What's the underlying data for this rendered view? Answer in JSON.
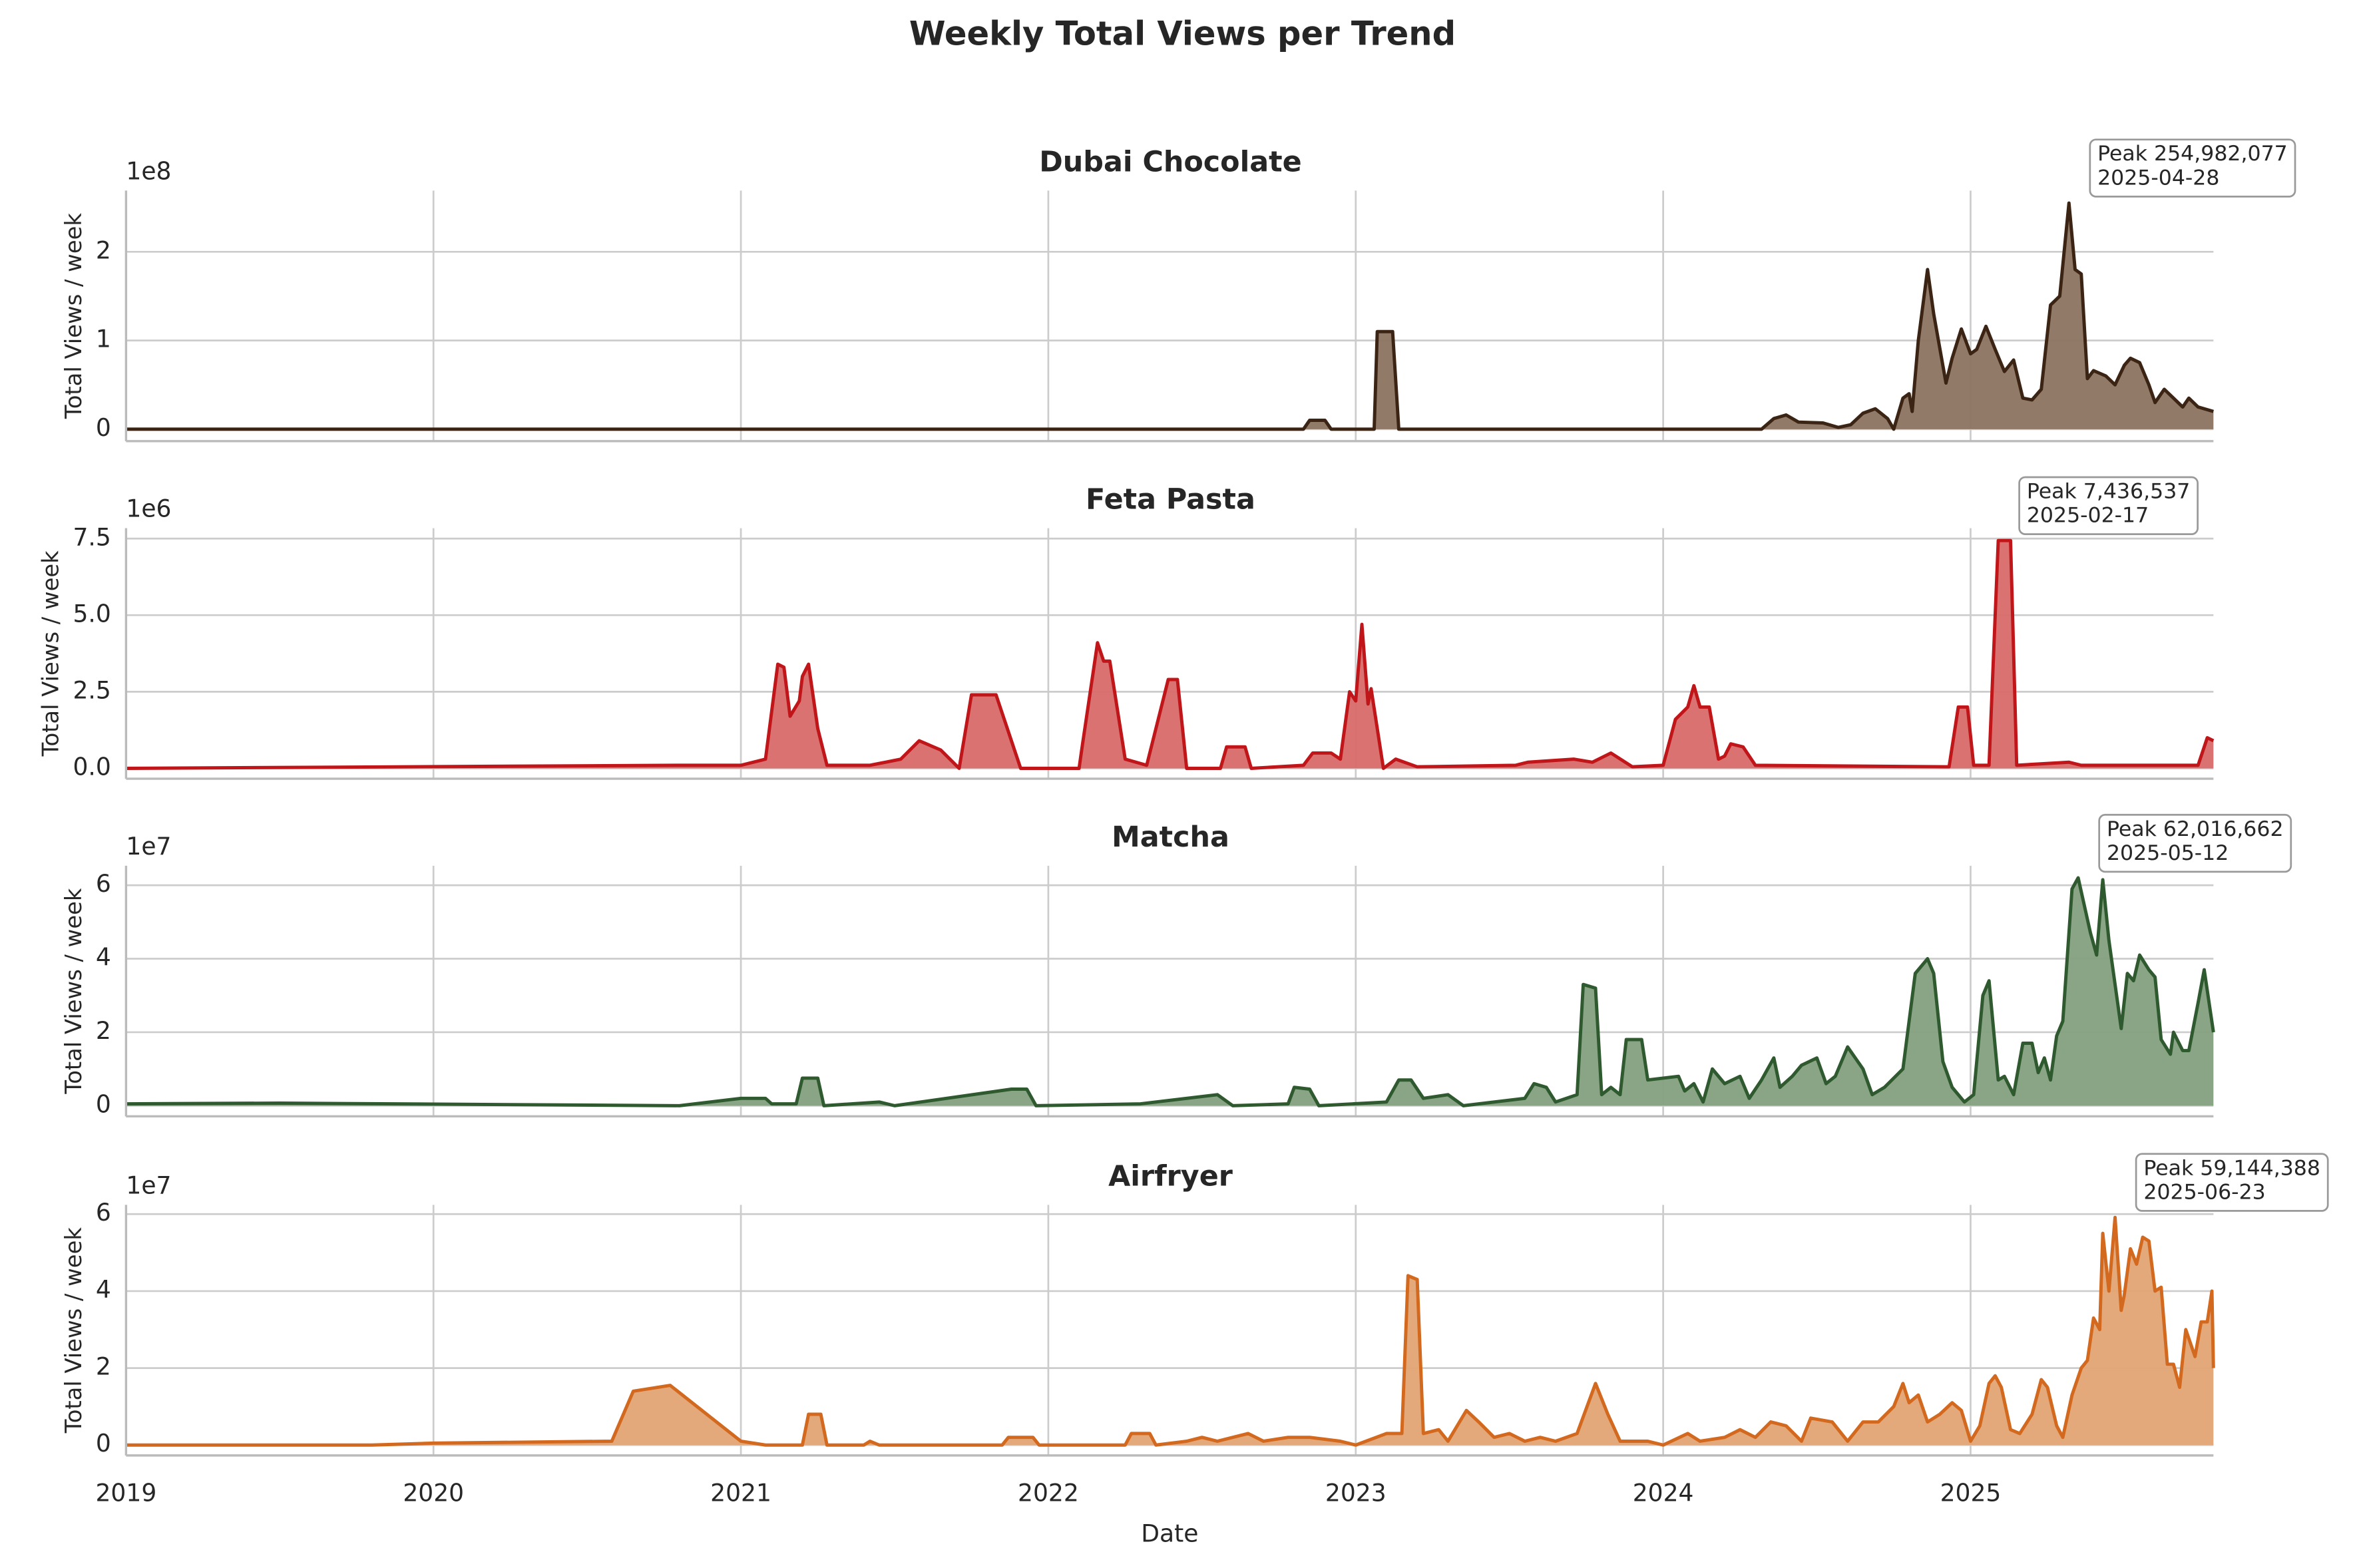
{
  "title": "Weekly Total Views per Trend",
  "chart_data": [
    {
      "type": "area",
      "title": "Dubai Chocolate",
      "ylabel": "Total Views / week",
      "y_offset_label": "1e8",
      "color": "#3b2414",
      "fill_color": "#8b7360",
      "xlim": [
        2019,
        2025.79
      ],
      "xticks": [
        2019,
        2020,
        2021,
        2022,
        2023,
        2024,
        2025
      ],
      "ylim": [
        -13500000,
        269000000
      ],
      "yticks": [
        0,
        {
          "value": 100000000,
          "label": "1"
        },
        {
          "value": 200000000,
          "label": "2"
        }
      ],
      "grid": true,
      "annotation": [
        "Peak 254,982,077",
        "2025-04-28"
      ],
      "x": [
        2019,
        2022.83,
        2022.85,
        2022.9,
        2022.92,
        2023.06,
        2023.07,
        2023.12,
        2023.14,
        2024.32,
        2024.36,
        2024.4,
        2024.44,
        2024.52,
        2024.57,
        2024.61,
        2024.65,
        2024.69,
        2024.73,
        2024.75,
        2024.78,
        2024.8,
        2024.81,
        2024.83,
        2024.86,
        2024.88,
        2024.92,
        2024.94,
        2024.97,
        2025.0,
        2025.02,
        2025.05,
        2025.08,
        2025.11,
        2025.14,
        2025.17,
        2025.2,
        2025.23,
        2025.26,
        2025.29,
        2025.32,
        2025.34,
        2025.36,
        2025.38,
        2025.4,
        2025.44,
        2025.47,
        2025.5,
        2025.52,
        2025.55,
        2025.58,
        2025.6,
        2025.63,
        2025.66,
        2025.69,
        2025.71,
        2025.74,
        2025.79
      ],
      "values": [
        0,
        0,
        10000000.0,
        10000000.0,
        0,
        0,
        110000000.0,
        110000000.0,
        0,
        0,
        12000000.0,
        16000000.0,
        8000000.0,
        7000000.0,
        2000000.0,
        5000000.0,
        18000000.0,
        23000000.0,
        12000000.0,
        0,
        35000000.0,
        40000000.0,
        20000000.0,
        100000000.0,
        180000000.0,
        130000000.0,
        52000000.0,
        80000000.0,
        113000000.0,
        85000000.0,
        90000000.0,
        116000000.0,
        90000000.0,
        65000000.0,
        78000000.0,
        35000000.0,
        33000000.0,
        45000000.0,
        140000000.0,
        150000000.0,
        254982077,
        180000000.0,
        175000000.0,
        57000000.0,
        66000000.0,
        60000000.0,
        50000000.0,
        72000000.0,
        80000000.0,
        75000000.0,
        50000000.0,
        30000000.0,
        45000000.0,
        35000000.0,
        25000000.0,
        35000000.0,
        25000000.0,
        20000000.0
      ]
    },
    {
      "type": "area",
      "title": "Feta Pasta",
      "ylabel": "Total Views / week",
      "y_offset_label": "1e6",
      "color": "#c0161a",
      "fill_color": "#d86a6a",
      "xlim": [
        2019,
        2025.79
      ],
      "xticks": [
        2019,
        2020,
        2021,
        2022,
        2023,
        2024,
        2025
      ],
      "ylim": [
        -340000,
        7840000
      ],
      "yticks": [
        {
          "value": 0,
          "label": "0.0"
        },
        {
          "value": 2500000,
          "label": "2.5"
        },
        {
          "value": 5000000,
          "label": "5.0"
        },
        {
          "value": 7500000,
          "label": "7.5"
        }
      ],
      "grid": true,
      "annotation": [
        "Peak 7,436,537",
        "2025-02-17"
      ],
      "x": [
        2019,
        2020.79,
        2021.0,
        2021.08,
        2021.12,
        2021.14,
        2021.16,
        2021.19,
        2021.2,
        2021.22,
        2021.25,
        2021.28,
        2021.42,
        2021.47,
        2021.52,
        2021.58,
        2021.65,
        2021.71,
        2021.75,
        2021.83,
        2021.91,
        2022.1,
        2022.11,
        2022.16,
        2022.18,
        2022.2,
        2022.25,
        2022.32,
        2022.39,
        2022.42,
        2022.45,
        2022.56,
        2022.58,
        2022.64,
        2022.66,
        2022.83,
        2022.86,
        2022.92,
        2022.95,
        2022.98,
        2023.0,
        2023.02,
        2023.04,
        2023.05,
        2023.09,
        2023.13,
        2023.2,
        2023.52,
        2023.56,
        2023.71,
        2023.77,
        2023.83,
        2023.9,
        2024.0,
        2024.04,
        2024.08,
        2024.1,
        2024.12,
        2024.15,
        2024.18,
        2024.2,
        2024.22,
        2024.26,
        2024.3,
        2024.93,
        2024.96,
        2024.99,
        2025.01,
        2025.06,
        2025.09,
        2025.13,
        2025.15,
        2025.32,
        2025.36,
        2025.74,
        2025.77,
        2025.79
      ],
      "values": [
        0,
        100000.0,
        100000.0,
        300000.0,
        3400000.0,
        3300000.0,
        1700000.0,
        2200000.0,
        3000000.0,
        3400000.0,
        1300000.0,
        100000.0,
        100000.0,
        200000.0,
        300000.0,
        900000.0,
        600000.0,
        0,
        2400000.0,
        2400000.0,
        0,
        0,
        700000.0,
        4100000.0,
        3500000.0,
        3500000.0,
        300000.0,
        100000.0,
        2900000.0,
        2900000.0,
        0,
        0,
        700000.0,
        700000.0,
        0,
        100000.0,
        500000.0,
        500000.0,
        300000.0,
        2500000.0,
        2200000.0,
        4700000.0,
        2100000.0,
        2600000.0,
        0,
        300000.0,
        50000.0,
        100000.0,
        200000.0,
        300000.0,
        200000.0,
        500000.0,
        50000.0,
        100000.0,
        1600000.0,
        2000000.0,
        2700000.0,
        2000000.0,
        2000000.0,
        300000.0,
        400000.0,
        800000.0,
        700000.0,
        100000.0,
        50000.0,
        2000000.0,
        2000000.0,
        100000.0,
        100000.0,
        7436537,
        7436537,
        100000.0,
        200000.0,
        100000.0,
        100000.0,
        1000000.0,
        900000.0
      ]
    },
    {
      "type": "area",
      "title": "Matcha",
      "ylabel": "Total Views / week",
      "y_offset_label": "1e7",
      "color": "#2f5a2f",
      "fill_color": "#84a07e",
      "xlim": [
        2019,
        2025.79
      ],
      "xticks": [
        2019,
        2020,
        2021,
        2022,
        2023,
        2024,
        2025
      ],
      "ylim": [
        -2900000,
        65300000
      ],
      "yticks": [
        0,
        {
          "value": 20000000,
          "label": "2"
        },
        {
          "value": 40000000,
          "label": "4"
        },
        {
          "value": 60000000,
          "label": "6"
        }
      ],
      "grid": true,
      "annotation": [
        "Peak 62,016,662",
        "2025-05-12"
      ],
      "x": [
        2019,
        2019.5,
        2020.8,
        2021.0,
        2021.08,
        2021.1,
        2021.18,
        2021.2,
        2021.25,
        2021.27,
        2021.45,
        2021.5,
        2021.88,
        2021.93,
        2021.96,
        2022.3,
        2022.55,
        2022.6,
        2022.78,
        2022.8,
        2022.85,
        2022.88,
        2023.1,
        2023.14,
        2023.18,
        2023.22,
        2023.3,
        2023.35,
        2023.55,
        2023.58,
        2023.62,
        2023.65,
        2023.72,
        2023.74,
        2023.78,
        2023.8,
        2023.83,
        2023.86,
        2023.88,
        2023.93,
        2023.95,
        2024.05,
        2024.07,
        2024.1,
        2024.13,
        2024.16,
        2024.2,
        2024.25,
        2024.28,
        2024.32,
        2024.36,
        2024.38,
        2024.42,
        2024.45,
        2024.5,
        2024.53,
        2024.56,
        2024.6,
        2024.65,
        2024.68,
        2024.72,
        2024.78,
        2024.82,
        2024.86,
        2024.88,
        2024.91,
        2024.94,
        2024.98,
        2025.01,
        2025.04,
        2025.06,
        2025.09,
        2025.11,
        2025.14,
        2025.17,
        2025.2,
        2025.22,
        2025.24,
        2025.26,
        2025.28,
        2025.3,
        2025.33,
        2025.35,
        2025.39,
        2025.41,
        2025.43,
        2025.45,
        2025.49,
        2025.51,
        2025.53,
        2025.55,
        2025.58,
        2025.6,
        2025.62,
        2025.65,
        2025.66,
        2025.69,
        2025.71,
        2025.74,
        2025.76,
        2025.79
      ],
      "values": [
        500000.0,
        700000.0,
        0,
        2000000.0,
        2000000.0,
        500000.0,
        500000.0,
        7500000.0,
        7500000.0,
        0,
        1000000.0,
        0,
        4500000.0,
        4500000.0,
        0,
        500000.0,
        3000000.0,
        0,
        500000.0,
        5000000.0,
        4500000.0,
        0,
        1000000.0,
        7000000.0,
        7000000.0,
        2000000.0,
        3000000.0,
        0,
        2000000.0,
        6000000.0,
        5000000.0,
        1000000.0,
        3000000.0,
        33000000.0,
        32000000.0,
        3000000.0,
        5000000.0,
        3000000.0,
        18000000.0,
        18000000.0,
        7000000.0,
        8000000.0,
        4000000.0,
        6000000.0,
        1000000.0,
        10000000.0,
        6000000.0,
        8000000.0,
        2000000.0,
        7000000.0,
        13000000.0,
        5000000.0,
        8000000.0,
        11000000.0,
        13000000.0,
        6000000.0,
        8000000.0,
        16000000.0,
        10000000.0,
        3000000.0,
        5000000.0,
        10000000.0,
        36000000.0,
        40000000.0,
        36000000.0,
        12000000.0,
        5000000.0,
        1000000.0,
        3000000.0,
        30000000.0,
        34000000.0,
        7000000.0,
        8000000.0,
        3000000.0,
        17000000.0,
        17000000.0,
        9000000.0,
        13000000.0,
        7000000.0,
        19000000.0,
        23000000.0,
        59000000.0,
        62016662,
        47000000.0,
        41000000.0,
        61500000.0,
        45000000.0,
        21000000.0,
        36000000.0,
        34000000.0,
        41000000.0,
        37000000.0,
        35000000.0,
        18000000.0,
        14000000.0,
        20000000.0,
        15000000.0,
        15000000.0,
        28000000.0,
        37000000.0,
        20000000.0
      ]
    },
    {
      "type": "area",
      "title": "Airfryer",
      "ylabel": "Total Views / week",
      "y_offset_label": "1e7",
      "xlabel": "Date",
      "color": "#d2691e",
      "fill_color": "#e3a474",
      "xlim": [
        2019,
        2025.79
      ],
      "xticks": [
        2019,
        2020,
        2021,
        2022,
        2023,
        2024,
        2025
      ],
      "ylim": [
        -2700000,
        62400000
      ],
      "yticks": [
        0,
        {
          "value": 20000000,
          "label": "2"
        },
        {
          "value": 40000000,
          "label": "4"
        },
        {
          "value": 60000000,
          "label": "6"
        }
      ],
      "grid": true,
      "annotation": [
        "Peak 59,144,388",
        "2025-06-23"
      ],
      "x": [
        2019,
        2019.8,
        2020.0,
        2020.58,
        2020.65,
        2020.77,
        2021.0,
        2021.08,
        2021.2,
        2021.22,
        2021.26,
        2021.28,
        2021.4,
        2021.42,
        2021.45,
        2021.85,
        2021.87,
        2021.95,
        2021.97,
        2022.25,
        2022.27,
        2022.33,
        2022.35,
        2022.45,
        2022.5,
        2022.55,
        2022.65,
        2022.7,
        2022.78,
        2022.85,
        2022.95,
        2023.0,
        2023.1,
        2023.15,
        2023.17,
        2023.2,
        2023.22,
        2023.27,
        2023.3,
        2023.36,
        2023.4,
        2023.45,
        2023.5,
        2023.55,
        2023.6,
        2023.65,
        2023.72,
        2023.78,
        2023.82,
        2023.86,
        2023.95,
        2024.0,
        2024.08,
        2024.12,
        2024.2,
        2024.25,
        2024.3,
        2024.35,
        2024.4,
        2024.45,
        2024.48,
        2024.55,
        2024.6,
        2024.65,
        2024.7,
        2024.75,
        2024.78,
        2024.8,
        2024.83,
        2024.86,
        2024.9,
        2024.94,
        2024.97,
        2025.0,
        2025.03,
        2025.06,
        2025.08,
        2025.1,
        2025.13,
        2025.16,
        2025.2,
        2025.23,
        2025.25,
        2025.28,
        2025.3,
        2025.33,
        2025.36,
        2025.38,
        2025.4,
        2025.42,
        2025.43,
        2025.45,
        2025.47,
        2025.49,
        2025.5,
        2025.52,
        2025.54,
        2025.56,
        2025.58,
        2025.6,
        2025.62,
        2025.64,
        2025.66,
        2025.68,
        2025.7,
        2025.73,
        2025.75,
        2025.77,
        2025.785,
        2025.79
      ],
      "values": [
        0,
        0,
        500000.0,
        1000000.0,
        14000000.0,
        15500000.0,
        1000000.0,
        0,
        0,
        8000000.0,
        8000000.0,
        0,
        0,
        1000000.0,
        0,
        0,
        2000000.0,
        2000000.0,
        0,
        0,
        3000000.0,
        3000000.0,
        0,
        1000000.0,
        2000000.0,
        1000000.0,
        3000000.0,
        1000000.0,
        2000000.0,
        2000000.0,
        1000000.0,
        0,
        3000000.0,
        3000000.0,
        44000000.0,
        43000000.0,
        3000000.0,
        4000000.0,
        1000000.0,
        9000000.0,
        6000000.0,
        2000000.0,
        3000000.0,
        1000000.0,
        2000000.0,
        1000000.0,
        3000000.0,
        16000000.0,
        8000000.0,
        1000000.0,
        1000000.0,
        0,
        3000000.0,
        1000000.0,
        2000000.0,
        4000000.0,
        2000000.0,
        6000000.0,
        5000000.0,
        1000000.0,
        7000000.0,
        6000000.0,
        1000000.0,
        6000000.0,
        6000000.0,
        10000000.0,
        16000000.0,
        11000000.0,
        13000000.0,
        6000000.0,
        8000000.0,
        11000000.0,
        9000000.0,
        1000000.0,
        5000000.0,
        16000000.0,
        18000000.0,
        15000000.0,
        4000000.0,
        3000000.0,
        8000000.0,
        17000000.0,
        15000000.0,
        5000000.0,
        2000000.0,
        13000000.0,
        20000000.0,
        22000000.0,
        33000000.0,
        30000000.0,
        55000000.0,
        40000000.0,
        59144388,
        35000000.0,
        39000000.0,
        51000000.0,
        47000000.0,
        54000000.0,
        53000000.0,
        40000000.0,
        41000000.0,
        21000000.0,
        21000000.0,
        15000000.0,
        30000000.0,
        23000000.0,
        32000000.0,
        32000000.0,
        40000000.0,
        20000000.0
      ]
    }
  ]
}
